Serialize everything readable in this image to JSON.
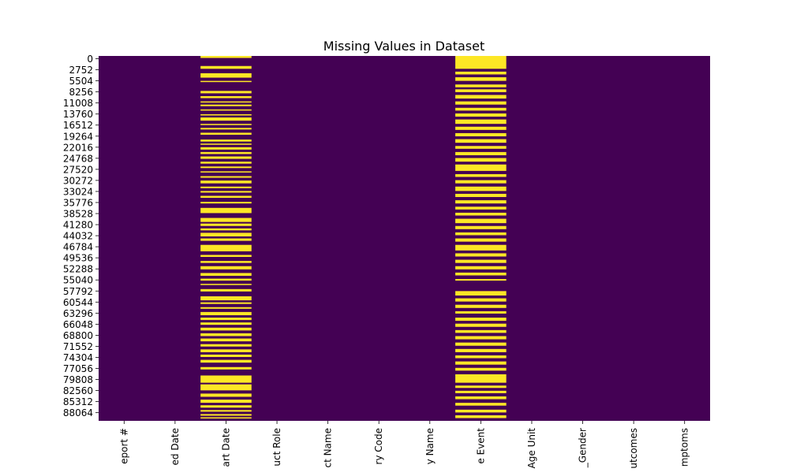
{
  "chart_data": {
    "type": "heatmap",
    "title": "Missing Values in Dataset",
    "xlabel": "",
    "ylabel": "",
    "colormap": "viridis",
    "colors": {
      "present": "#440154",
      "missing": "#fde725"
    },
    "y_tick_labels": [
      "0",
      "2752",
      "5504",
      "8256",
      "11008",
      "13760",
      "16512",
      "19264",
      "22016",
      "24768",
      "27520",
      "30272",
      "33024",
      "35776",
      "38528",
      "41280",
      "44032",
      "46784",
      "49536",
      "52288",
      "55040",
      "57792",
      "60544",
      "63296",
      "66048",
      "68800",
      "71552",
      "74304",
      "77056",
      "79808",
      "82560",
      "85312",
      "88064"
    ],
    "y_tick_step": 1376,
    "y_tick_every": 2,
    "row_count": 90780,
    "columns": [
      {
        "label": "eport #",
        "missing_bands": []
      },
      {
        "label": "ed Date",
        "missing_bands": []
      },
      {
        "label": "art Date",
        "missing_bands": [
          [
            0,
            500
          ],
          [
            2500,
            3200
          ],
          [
            4300,
            5400
          ],
          [
            6200,
            6500
          ],
          [
            8700,
            9300
          ],
          [
            10000,
            10500
          ],
          [
            11300,
            11600
          ],
          [
            12100,
            12500
          ],
          [
            13300,
            13600
          ],
          [
            14500,
            14800
          ],
          [
            15300,
            16100
          ],
          [
            16900,
            17200
          ],
          [
            17900,
            18300
          ],
          [
            19100,
            19600
          ],
          [
            20800,
            21300
          ],
          [
            21800,
            22100
          ],
          [
            22700,
            23300
          ],
          [
            23900,
            24400
          ],
          [
            25000,
            25600
          ],
          [
            26300,
            26800
          ],
          [
            27500,
            27900
          ],
          [
            28700,
            29000
          ],
          [
            29900,
            30300
          ],
          [
            31000,
            31700
          ],
          [
            32500,
            32900
          ],
          [
            33600,
            34000
          ],
          [
            34800,
            35300
          ],
          [
            36300,
            36700
          ],
          [
            37800,
            39100
          ],
          [
            40300,
            41300
          ],
          [
            41700,
            42300
          ],
          [
            42900,
            43400
          ],
          [
            44000,
            44900
          ],
          [
            45400,
            46000
          ],
          [
            47000,
            48600
          ],
          [
            49500,
            50000
          ],
          [
            51000,
            51500
          ],
          [
            52300,
            53100
          ],
          [
            54000,
            54700
          ],
          [
            55400,
            55900
          ],
          [
            56700,
            57000
          ],
          [
            58000,
            58600
          ],
          [
            59800,
            60800
          ],
          [
            61300,
            61700
          ],
          [
            62500,
            62900
          ],
          [
            63700,
            64500
          ],
          [
            65100,
            65700
          ],
          [
            66300,
            66900
          ],
          [
            67600,
            68300
          ],
          [
            69000,
            69700
          ],
          [
            70300,
            71000
          ],
          [
            71700,
            72300
          ],
          [
            73000,
            73700
          ],
          [
            74300,
            74900
          ],
          [
            75600,
            76300
          ],
          [
            77400,
            78000
          ],
          [
            79500,
            81300
          ],
          [
            81700,
            83200
          ],
          [
            84000,
            84800
          ],
          [
            85500,
            86300
          ],
          [
            86900,
            87500
          ],
          [
            88100,
            88500
          ],
          [
            89100,
            89500
          ],
          [
            89900,
            90200
          ]
        ]
      },
      {
        "label": "uct Role",
        "missing_bands": []
      },
      {
        "label": "ct Name",
        "missing_bands": []
      },
      {
        "label": "ry Code",
        "missing_bands": []
      },
      {
        "label": "y Name",
        "missing_bands": []
      },
      {
        "label": "e Event",
        "missing_bands": [
          [
            0,
            3200
          ],
          [
            3900,
            4600
          ],
          [
            5300,
            6200
          ],
          [
            7100,
            7800
          ],
          [
            8300,
            9000
          ],
          [
            9700,
            10600
          ],
          [
            11300,
            12100
          ],
          [
            12900,
            13600
          ],
          [
            14300,
            15100
          ],
          [
            15800,
            16900
          ],
          [
            17600,
            18400
          ],
          [
            19200,
            20000
          ],
          [
            20700,
            21600
          ],
          [
            22400,
            23100
          ],
          [
            23900,
            24700
          ],
          [
            25400,
            26300
          ],
          [
            27000,
            28600
          ],
          [
            29400,
            30100
          ],
          [
            30900,
            31700
          ],
          [
            32500,
            33600
          ],
          [
            34300,
            35100
          ],
          [
            35900,
            36700
          ],
          [
            37500,
            38200
          ],
          [
            39000,
            39700
          ],
          [
            40500,
            41600
          ],
          [
            42300,
            43100
          ],
          [
            43900,
            44600
          ],
          [
            45400,
            46200
          ],
          [
            47000,
            48400
          ],
          [
            49100,
            49900
          ],
          [
            50700,
            51500
          ],
          [
            52300,
            53100
          ],
          [
            53900,
            54600
          ],
          [
            55500,
            55900
          ],
          [
            58500,
            59600
          ],
          [
            60300,
            61100
          ],
          [
            61900,
            62700
          ],
          [
            63500,
            64100
          ],
          [
            65100,
            65900
          ],
          [
            66600,
            67400
          ],
          [
            68200,
            68900
          ],
          [
            69700,
            70500
          ],
          [
            71300,
            72100
          ],
          [
            72900,
            73700
          ],
          [
            74500,
            75200
          ],
          [
            76000,
            76800
          ],
          [
            77600,
            78300
          ],
          [
            79200,
            81300
          ],
          [
            82000,
            82600
          ],
          [
            83300,
            83900
          ],
          [
            84700,
            85400
          ],
          [
            86300,
            87000
          ],
          [
            88000,
            88700
          ],
          [
            89400,
            90100
          ]
        ]
      },
      {
        "label": "Age Unit",
        "missing_bands": []
      },
      {
        "label": "_Gender",
        "missing_bands": []
      },
      {
        "label": "utcomes",
        "missing_bands": []
      },
      {
        "label": "mptoms",
        "missing_bands": []
      }
    ]
  }
}
